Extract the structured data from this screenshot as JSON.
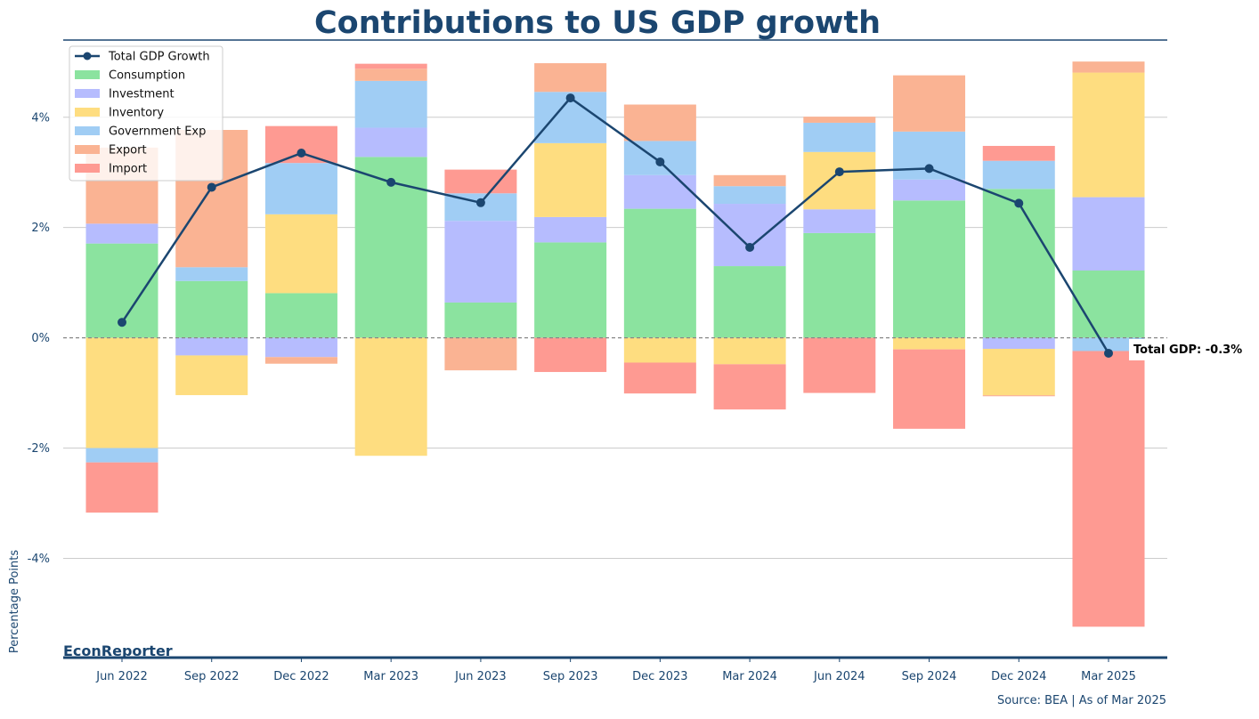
{
  "chart_data": {
    "type": "bar",
    "stacked": true,
    "title": "Contributions to US GDP growth",
    "xlabel": "",
    "ylabel": "Percentage Points",
    "brand": "EconReporter",
    "source": "Source: BEA | As of Mar 2025",
    "annotation": "Total GDP: -0.3%",
    "ylim": [
      -5.8,
      5.4
    ],
    "yticks": [
      -4,
      -2,
      0,
      2,
      4
    ],
    "ytick_labels": [
      "-4%",
      "-2%",
      "0%",
      "2%",
      "4%"
    ],
    "grid": true,
    "legend_position": "top-left",
    "categories": [
      "Jun 2022",
      "Sep 2022",
      "Dec 2022",
      "Mar 2023",
      "Jun 2023",
      "Sep 2023",
      "Dec 2023",
      "Mar 2024",
      "Jun 2024",
      "Sep 2024",
      "Dec 2024",
      "Mar 2025"
    ],
    "series": [
      {
        "name": "Consumption",
        "color": "#8be39f",
        "values": [
          1.71,
          1.03,
          0.81,
          3.28,
          0.64,
          1.73,
          2.34,
          1.3,
          1.9,
          2.49,
          2.7,
          1.22
        ]
      },
      {
        "name": "Investment",
        "color": "#b6bcfe",
        "values": [
          0.36,
          -0.32,
          -0.35,
          0.53,
          1.48,
          0.46,
          0.61,
          1.13,
          0.43,
          0.38,
          -0.2,
          1.33
        ]
      },
      {
        "name": "Inventory",
        "color": "#fedd80",
        "values": [
          -2.0,
          -0.72,
          1.43,
          -2.14,
          0.0,
          1.34,
          -0.45,
          -0.48,
          1.04,
          -0.21,
          -0.84,
          2.26
        ]
      },
      {
        "name": "Government Exp",
        "color": "#a0cdf4",
        "values": [
          -0.26,
          0.25,
          0.93,
          0.85,
          0.5,
          0.93,
          0.62,
          0.32,
          0.53,
          0.87,
          0.51,
          -0.24
        ]
      },
      {
        "name": "Export",
        "color": "#fab393",
        "values": [
          1.38,
          2.49,
          -0.12,
          0.22,
          -0.59,
          0.52,
          0.66,
          0.2,
          0.11,
          1.02,
          -0.02,
          0.2
        ]
      },
      {
        "name": "Import",
        "color": "#fe9a92",
        "values": [
          -0.91,
          0.0,
          0.67,
          0.09,
          0.43,
          -0.62,
          -0.56,
          -0.82,
          -1.0,
          -1.44,
          0.27,
          -5.0
        ]
      }
    ],
    "line": {
      "name": "Total GDP Growth",
      "color": "#1b4670",
      "values": [
        0.28,
        2.73,
        3.35,
        2.82,
        2.45,
        4.35,
        3.19,
        1.64,
        3.01,
        3.07,
        2.44,
        -0.28
      ]
    }
  }
}
